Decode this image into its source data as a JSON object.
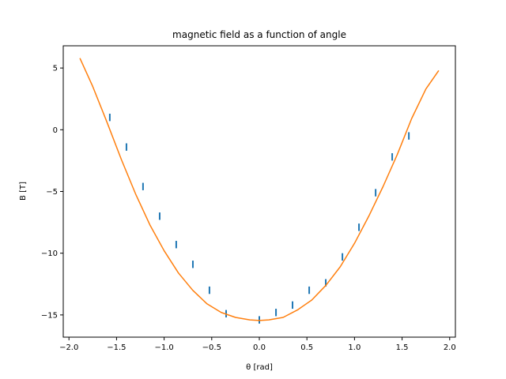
{
  "chart_data": {
    "type": "scatter",
    "title": "magnetic field as a function of angle",
    "xlabel": "θ [rad]",
    "ylabel": "B [T]",
    "xlim": [
      -2.06,
      2.06
    ],
    "ylim": [
      -16.8,
      6.8
    ],
    "xticks": [
      -2.0,
      -1.5,
      -1.0,
      -0.5,
      0.0,
      0.5,
      1.0,
      1.5,
      2.0
    ],
    "xtick_labels": [
      "−2.0",
      "−1.5",
      "−1.0",
      "−0.5",
      "0.0",
      "0.5",
      "1.0",
      "1.5",
      "2.0"
    ],
    "yticks": [
      5,
      0,
      -5,
      -10,
      -15
    ],
    "ytick_labels": [
      "5",
      "0",
      "−5",
      "−10",
      "−15"
    ],
    "grid": false,
    "legend": "none",
    "series": [
      {
        "kind": "errorbar",
        "color": "#1f77b4",
        "points": [
          {
            "x": -1.571,
            "y": 1.0,
            "err": 0.3
          },
          {
            "x": -1.396,
            "y": -1.4,
            "err": 0.3
          },
          {
            "x": -1.222,
            "y": -4.6,
            "err": 0.3
          },
          {
            "x": -1.047,
            "y": -7.0,
            "err": 0.3
          },
          {
            "x": -0.873,
            "y": -9.3,
            "err": 0.3
          },
          {
            "x": -0.698,
            "y": -10.9,
            "err": 0.3
          },
          {
            "x": -0.524,
            "y": -13.0,
            "err": 0.3
          },
          {
            "x": -0.349,
            "y": -14.9,
            "err": 0.3
          },
          {
            "x": 0.0,
            "y": -15.4,
            "err": 0.3
          },
          {
            "x": 0.175,
            "y": -14.8,
            "err": 0.3
          },
          {
            "x": 0.349,
            "y": -14.2,
            "err": 0.3
          },
          {
            "x": 0.524,
            "y": -13.0,
            "err": 0.3
          },
          {
            "x": 0.698,
            "y": -12.4,
            "err": 0.3
          },
          {
            "x": 0.873,
            "y": -10.3,
            "err": 0.3
          },
          {
            "x": 1.047,
            "y": -7.9,
            "err": 0.3
          },
          {
            "x": 1.222,
            "y": -5.1,
            "err": 0.3
          },
          {
            "x": 1.396,
            "y": -2.2,
            "err": 0.3
          },
          {
            "x": 1.571,
            "y": -0.5,
            "err": 0.3
          }
        ]
      },
      {
        "kind": "line",
        "color": "#ff7f0e",
        "x": [
          -1.885,
          -1.75,
          -1.6,
          -1.45,
          -1.3,
          -1.15,
          -1.0,
          -0.85,
          -0.7,
          -0.55,
          -0.4,
          -0.25,
          -0.1,
          0.0,
          0.1,
          0.25,
          0.4,
          0.55,
          0.7,
          0.85,
          1.0,
          1.15,
          1.3,
          1.45,
          1.6,
          1.75,
          1.885
        ],
        "y": [
          5.8,
          3.5,
          0.6,
          -2.4,
          -5.2,
          -7.7,
          -9.8,
          -11.6,
          -13.0,
          -14.1,
          -14.8,
          -15.2,
          -15.4,
          -15.45,
          -15.4,
          -15.2,
          -14.6,
          -13.8,
          -12.6,
          -11.1,
          -9.2,
          -7.0,
          -4.6,
          -2.0,
          0.9,
          3.3,
          4.8
        ]
      }
    ]
  }
}
